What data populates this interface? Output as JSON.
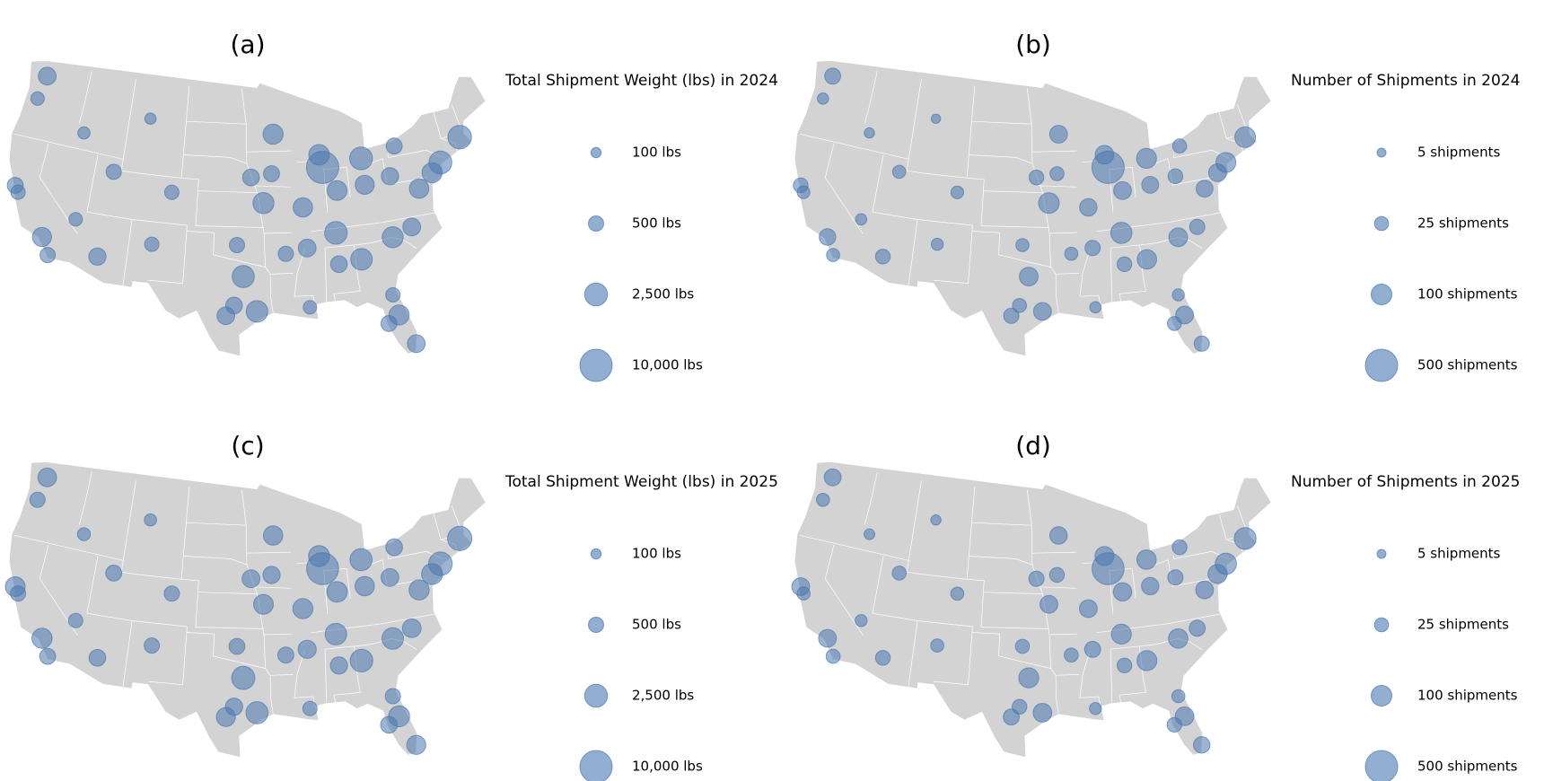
{
  "chart_data": [
    {
      "type": "bubble-map",
      "title": "(a)",
      "legend_title": "Total Shipment Weight (lbs) in 2024",
      "color": "#4a78b0",
      "size_legend": [
        {
          "value": 100,
          "label": "100 lbs"
        },
        {
          "value": 500,
          "label": "500 lbs"
        },
        {
          "value": 2500,
          "label": "2,500 lbs"
        },
        {
          "value": 10000,
          "label": "10,000 lbs"
        }
      ],
      "lon": [
        -122.3,
        -122.7,
        -122.4,
        -121.9,
        -118.2,
        -117.2,
        -112.1,
        -115.1,
        -111.9,
        -105.0,
        -116.2,
        -108.5,
        -93.3,
        -93.6,
        -96.0,
        -94.6,
        -96.8,
        -95.4,
        -98.5,
        -97.7,
        -97.5,
        -90.1,
        -87.6,
        -87.9,
        -83.0,
        -86.2,
        -83.0,
        -90.2,
        -86.8,
        -90.0,
        -84.4,
        -80.8,
        -78.6,
        -77.0,
        -75.2,
        -74.0,
        -71.1,
        -80.0,
        -81.4,
        -80.2,
        -82.5,
        -81.7,
        -86.8,
        -92.3,
        -106.6,
        -78.9
      ],
      "lat": [
        47.6,
        45.5,
        37.8,
        37.3,
        34.1,
        32.7,
        33.4,
        36.2,
        40.8,
        39.7,
        43.6,
        45.8,
        45.0,
        41.6,
        41.3,
        39.1,
        32.8,
        29.8,
        29.4,
        30.3,
        35.5,
        30.0,
        41.9,
        43.0,
        42.3,
        39.8,
        40.0,
        38.6,
        36.2,
        35.1,
        33.7,
        35.2,
        35.8,
        38.9,
        40.0,
        40.7,
        42.4,
        40.4,
        28.5,
        25.8,
        27.9,
        30.3,
        33.5,
        34.7,
        35.1,
        42.9
      ],
      "values": [
        900,
        300,
        600,
        400,
        1200,
        500,
        800,
        300,
        500,
        400,
        200,
        150,
        1500,
        600,
        700,
        1800,
        2200,
        2000,
        900,
        700,
        500,
        300,
        10000,
        1600,
        2500,
        1400,
        1200,
        1300,
        2400,
        900,
        2000,
        1800,
        900,
        1300,
        1500,
        2500,
        2800,
        800,
        1500,
        900,
        600,
        400,
        700,
        500,
        400,
        600
      ]
    },
    {
      "type": "bubble-map",
      "title": "(b)",
      "legend_title": "Number of Shipments in 2024",
      "color": "#4a78b0",
      "size_legend": [
        {
          "value": 5,
          "label": "5 shipments"
        },
        {
          "value": 25,
          "label": "25 shipments"
        },
        {
          "value": 100,
          "label": "100 shipments"
        },
        {
          "value": 500,
          "label": "500 shipments"
        }
      ],
      "lon": [
        -122.3,
        -122.7,
        -122.4,
        -121.9,
        -118.2,
        -117.2,
        -112.1,
        -115.1,
        -111.9,
        -105.0,
        -116.2,
        -108.5,
        -93.3,
        -93.6,
        -96.0,
        -94.6,
        -96.8,
        -95.4,
        -98.5,
        -97.7,
        -97.5,
        -90.1,
        -87.6,
        -87.9,
        -83.0,
        -86.2,
        -83.0,
        -90.2,
        -86.8,
        -90.0,
        -84.4,
        -80.8,
        -78.6,
        -77.0,
        -75.2,
        -74.0,
        -71.1,
        -80.0,
        -81.4,
        -80.2,
        -82.5,
        -81.7,
        -86.8,
        -92.3,
        -106.6,
        -78.9
      ],
      "lat": [
        47.6,
        45.5,
        37.8,
        37.3,
        34.1,
        32.7,
        33.4,
        36.2,
        40.8,
        39.7,
        43.6,
        45.8,
        45.0,
        41.6,
        41.3,
        39.1,
        32.8,
        29.8,
        29.4,
        30.3,
        35.5,
        30.0,
        41.9,
        43.0,
        42.3,
        39.8,
        40.0,
        38.6,
        36.2,
        35.1,
        33.7,
        35.2,
        35.8,
        38.9,
        40.0,
        40.7,
        42.4,
        40.4,
        28.5,
        25.8,
        27.9,
        30.3,
        33.5,
        34.7,
        35.1,
        42.9
      ],
      "values": [
        40,
        12,
        30,
        18,
        45,
        20,
        30,
        12,
        20,
        18,
        8,
        6,
        60,
        25,
        30,
        100,
        70,
        60,
        35,
        25,
        20,
        12,
        500,
        70,
        90,
        60,
        50,
        55,
        110,
        35,
        80,
        70,
        35,
        50,
        60,
        90,
        100,
        30,
        60,
        35,
        25,
        15,
        30,
        20,
        15,
        25
      ]
    },
    {
      "type": "bubble-map",
      "title": "(c)",
      "legend_title": "Total Shipment Weight (lbs) in 2025",
      "color": "#4a78b0",
      "size_legend": [
        {
          "value": 100,
          "label": "100 lbs"
        },
        {
          "value": 500,
          "label": "500 lbs"
        },
        {
          "value": 2500,
          "label": "2,500 lbs"
        },
        {
          "value": 10000,
          "label": "10,000 lbs"
        }
      ],
      "lon": [
        -122.3,
        -122.7,
        -122.4,
        -121.9,
        -118.2,
        -117.2,
        -112.1,
        -115.1,
        -111.9,
        -105.0,
        -116.2,
        -108.5,
        -93.3,
        -93.6,
        -96.0,
        -94.6,
        -96.8,
        -95.4,
        -98.5,
        -97.7,
        -97.5,
        -90.1,
        -87.6,
        -87.9,
        -83.0,
        -86.2,
        -83.0,
        -90.2,
        -86.8,
        -90.0,
        -84.4,
        -80.8,
        -78.6,
        -77.0,
        -75.2,
        -74.0,
        -71.1,
        -80.0,
        -81.4,
        -80.2,
        -82.5,
        -81.7,
        -86.8,
        -92.3,
        -106.6,
        -78.9
      ],
      "lat": [
        47.6,
        45.5,
        37.8,
        37.3,
        34.1,
        32.7,
        33.4,
        36.2,
        40.8,
        39.7,
        43.6,
        45.8,
        45.0,
        41.6,
        41.3,
        39.1,
        32.8,
        29.8,
        29.4,
        30.3,
        35.5,
        30.0,
        41.9,
        43.0,
        42.3,
        39.8,
        40.0,
        38.6,
        36.2,
        35.1,
        33.7,
        35.2,
        35.8,
        38.9,
        40.0,
        40.7,
        42.4,
        40.4,
        28.5,
        25.8,
        27.9,
        30.3,
        33.5,
        34.7,
        35.1,
        42.9
      ],
      "values": [
        1100,
        500,
        1400,
        500,
        1500,
        600,
        700,
        400,
        600,
        500,
        250,
        200,
        1300,
        800,
        900,
        1400,
        2600,
        2200,
        1200,
        800,
        600,
        400,
        9500,
        1800,
        2200,
        1600,
        1300,
        1500,
        2000,
        1000,
        2400,
        2000,
        1100,
        1500,
        1800,
        2800,
        3200,
        900,
        1800,
        1200,
        700,
        500,
        800,
        600,
        500,
        700
      ]
    },
    {
      "type": "bubble-map",
      "title": "(d)",
      "legend_title": "Number of Shipments in 2025",
      "color": "#4a78b0",
      "size_legend": [
        {
          "value": 5,
          "label": "5 shipments"
        },
        {
          "value": 25,
          "label": "25 shipments"
        },
        {
          "value": 100,
          "label": "100 shipments"
        },
        {
          "value": 500,
          "label": "500 shipments"
        }
      ],
      "lon": [
        -122.3,
        -122.7,
        -122.4,
        -121.9,
        -118.2,
        -117.2,
        -112.1,
        -115.1,
        -111.9,
        -105.0,
        -116.2,
        -108.5,
        -93.3,
        -93.6,
        -96.0,
        -94.6,
        -96.8,
        -95.4,
        -98.5,
        -97.7,
        -97.5,
        -90.1,
        -87.6,
        -87.9,
        -83.0,
        -86.2,
        -83.0,
        -90.2,
        -86.8,
        -90.0,
        -84.4,
        -80.8,
        -78.6,
        -77.0,
        -75.2,
        -74.0,
        -71.1,
        -80.0,
        -81.4,
        -80.2,
        -82.5,
        -81.7,
        -86.8,
        -92.3,
        -106.6,
        -78.9
      ],
      "lat": [
        47.6,
        45.5,
        37.8,
        37.3,
        34.1,
        32.7,
        33.4,
        36.2,
        40.8,
        39.7,
        43.6,
        45.8,
        45.0,
        41.6,
        41.3,
        39.1,
        32.8,
        29.8,
        29.4,
        30.3,
        35.5,
        30.0,
        41.9,
        43.0,
        42.3,
        39.8,
        40.0,
        38.6,
        36.2,
        35.1,
        33.7,
        35.2,
        35.8,
        38.9,
        40.0,
        40.7,
        42.4,
        40.4,
        28.5,
        25.8,
        27.9,
        30.3,
        33.5,
        34.7,
        35.1,
        42.9
      ],
      "values": [
        50,
        20,
        60,
        20,
        60,
        25,
        30,
        15,
        25,
        20,
        10,
        8,
        55,
        30,
        35,
        60,
        90,
        70,
        40,
        30,
        25,
        15,
        480,
        75,
        80,
        65,
        55,
        60,
        90,
        40,
        90,
        80,
        40,
        60,
        75,
        110,
        120,
        35,
        70,
        45,
        30,
        20,
        30,
        25,
        20,
        30
      ]
    }
  ]
}
